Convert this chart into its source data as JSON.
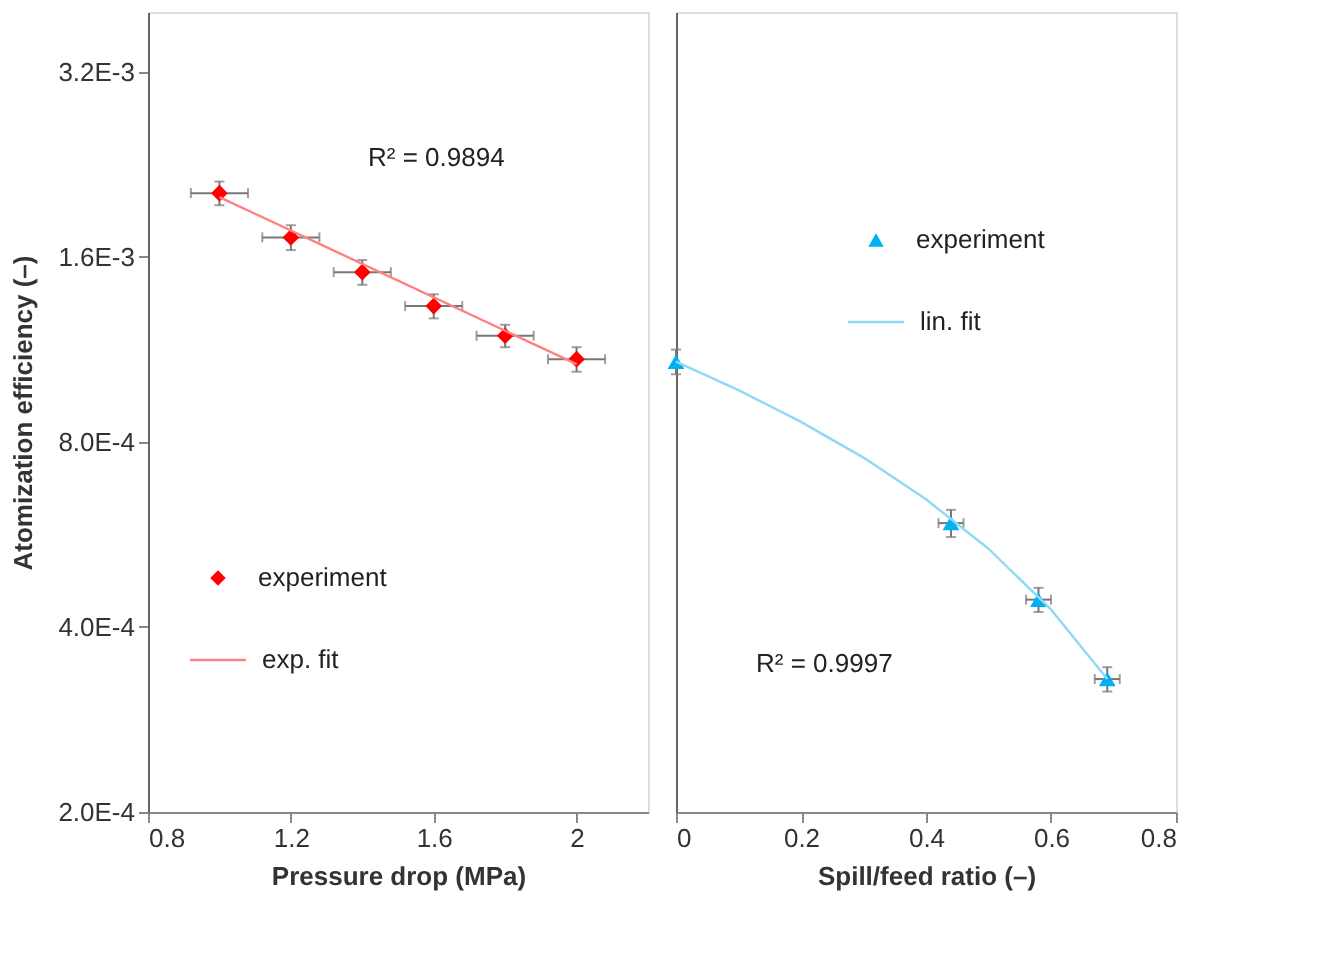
{
  "chart_data": [
    {
      "type": "scatter",
      "xlabel": "Pressure drop  (MPa)",
      "ylabel": "Atomization efficiency  (–)",
      "log": "y",
      "grid": false,
      "legend": "left",
      "xlim": [
        0.8,
        2.2
      ],
      "xticks": [
        0.8,
        1.2,
        1.6,
        2
      ],
      "ylim": [
        0.0002,
        0.004
      ],
      "yticks": [
        {
          "value": 0.0002,
          "label": "2.0E-4"
        },
        {
          "value": 0.0004,
          "label": "4.0E-4"
        },
        {
          "value": 0.0008,
          "label": "8.0E-4"
        },
        {
          "value": 0.0016,
          "label": "1.6E-3"
        },
        {
          "value": 0.0032,
          "label": "3.2E-3"
        }
      ],
      "annotations": [
        "R² = 0.9894"
      ],
      "series": [
        {
          "name": "experiment",
          "type": "scatter",
          "marker": "diamond",
          "color": "#ff0000",
          "x": [
            1.0,
            1.2,
            1.4,
            1.6,
            1.8,
            2.0
          ],
          "values": [
            0.00203,
            0.00172,
            0.00151,
            0.00133,
            0.00119,
            0.00109
          ],
          "errors": [
            9e-05,
            8e-05,
            7e-05,
            6e-05,
            5e-05,
            5e-05
          ],
          "xerrors": [
            0.08,
            0.08,
            0.08,
            0.08,
            0.08,
            0.08
          ]
        },
        {
          "name": "exp. fit",
          "type": "line",
          "marker": "none",
          "line_style": "solid",
          "color": "#ff8080",
          "x": [
            1.0,
            2.0
          ],
          "values": [
            0.002,
            0.00107
          ]
        }
      ]
    },
    {
      "type": "scatter",
      "xlabel": "Spill/feed ratio  (–)",
      "log": "y",
      "grid": false,
      "legend": "top right",
      "tick_labels": "x",
      "xlim": [
        0,
        0.8
      ],
      "xticks": [
        0,
        0.2,
        0.4,
        0.6,
        0.8
      ],
      "ylim": [
        0.0002,
        0.004
      ],
      "yticks": [
        {
          "value": 0.0002,
          "label": null
        },
        {
          "value": 0.0004,
          "label": null
        },
        {
          "value": 0.0008,
          "label": null
        },
        {
          "value": 0.0016,
          "label": null
        },
        {
          "value": 0.0032,
          "label": null
        }
      ],
      "annotations": [
        "R² = 0.9997"
      ],
      "series": [
        {
          "name": "experiment",
          "type": "scatter",
          "marker": "triangle",
          "color": "#00b0f0",
          "x": [
            0,
            0.44,
            0.58,
            0.69
          ],
          "values": [
            0.00108,
            0.00059,
            0.000443,
            0.000329
          ],
          "errors": [
            5e-05,
            3e-05,
            2e-05,
            1.5e-05
          ],
          "xerrors": [
            null,
            0.02,
            0.02,
            0.02
          ]
        },
        {
          "name": "lin. fit",
          "type": "line",
          "marker": "none",
          "line_style": "solid",
          "color": "#8fd8f8",
          "x": [
            0,
            0.1,
            0.2,
            0.3,
            0.4,
            0.5,
            0.6,
            0.69
          ],
          "values": [
            0.00108,
            0.000971,
            0.000862,
            0.000754,
            0.000645,
            0.000536,
            0.000427,
            0.000329
          ]
        }
      ]
    }
  ]
}
